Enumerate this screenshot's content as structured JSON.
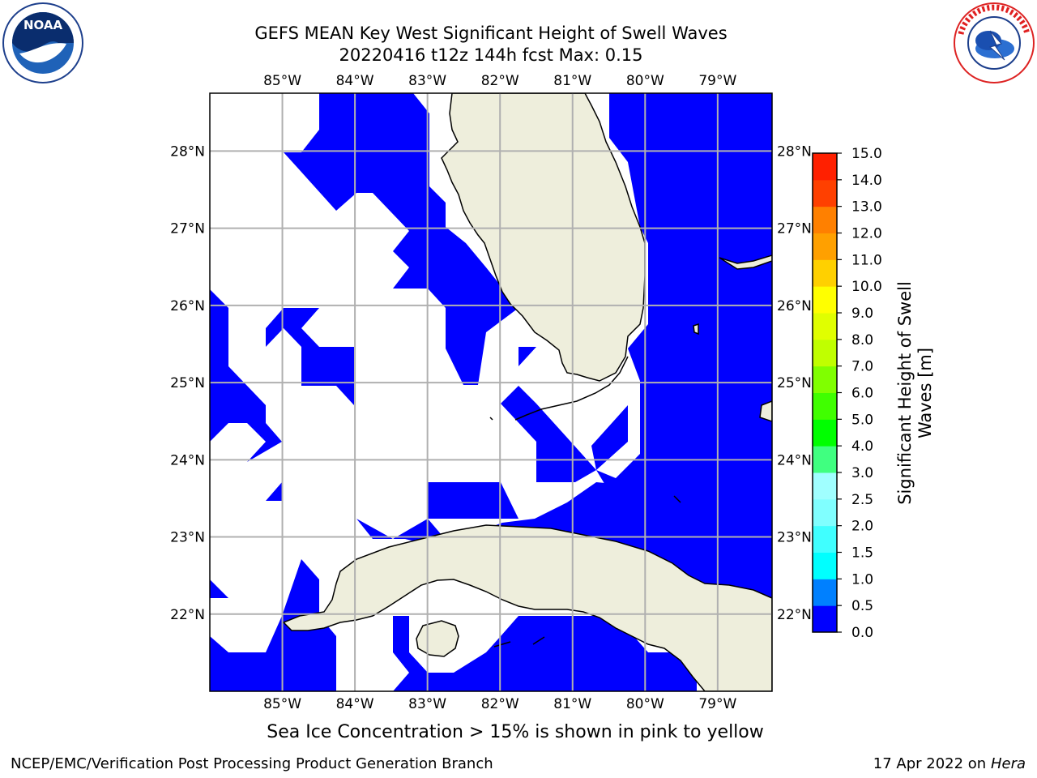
{
  "title_line1": "GEFS MEAN Key West Significant Height of Swell Waves",
  "title_line2": "20220416 t12z 144h fcst   Max: 0.15",
  "logos": {
    "left_icon": "noaa-logo-icon",
    "right_icon": "nws-logo-icon"
  },
  "map": {
    "extent": {
      "lon_min": -86.0,
      "lon_max": -78.25,
      "lat_min": 21.0,
      "lat_max": 28.75
    },
    "lon_ticks": [
      "85°W",
      "84°W",
      "83°W",
      "82°W",
      "81°W",
      "80°W",
      "79°W"
    ],
    "lon_values": [
      -85,
      -84,
      -83,
      -82,
      -81,
      -80,
      -79
    ],
    "lat_ticks": [
      "28°N",
      "27°N",
      "26°N",
      "25°N",
      "24°N",
      "23°N",
      "22°N"
    ],
    "lat_values": [
      28,
      27,
      26,
      25,
      24,
      23,
      22
    ],
    "colors": {
      "water_blue": "#0000ff",
      "land": "#eeeedc",
      "grid": "#b0b0b0"
    }
  },
  "colorbar": {
    "label_line1": "Significant Height of Swell",
    "label_line2": "Waves [m]",
    "ticks": [
      "0.0",
      "0.5",
      "1.0",
      "1.5",
      "2.0",
      "2.5",
      "3.0",
      "4.0",
      "5.0",
      "6.0",
      "7.0",
      "8.0",
      "9.0",
      "10.0",
      "11.0",
      "12.0",
      "13.0",
      "14.0",
      "15.0"
    ],
    "colors": [
      "#0000ff",
      "#0080ff",
      "#00ffff",
      "#40ffff",
      "#80ffff",
      "#a0ffff",
      "#40ff80",
      "#00ff00",
      "#40ff00",
      "#80ff00",
      "#c0ff00",
      "#e0ff00",
      "#ffff00",
      "#ffd000",
      "#ffa000",
      "#ff8000",
      "#ff4000",
      "#ff2000"
    ]
  },
  "caption": "Sea Ice Concentration > 15% is shown in pink to yellow",
  "footer_left": "NCEP/EMC/Verification Post Processing Product Generation Branch",
  "footer_right_date": "17 Apr 2022 on ",
  "footer_right_host": "Hera"
}
